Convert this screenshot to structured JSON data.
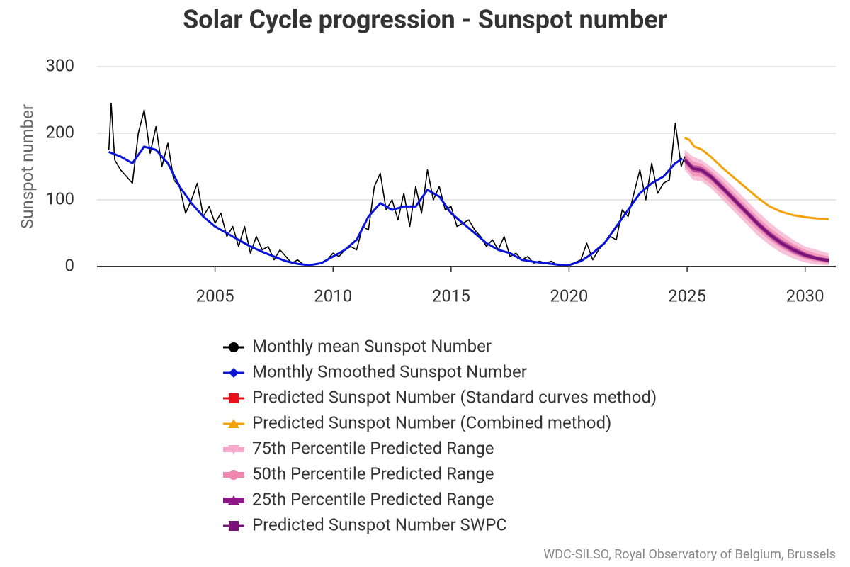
{
  "chart_data": {
    "type": "line",
    "title": "Solar Cycle progression - Sunspot number",
    "ylabel": "Sunspot number",
    "source": "WDC-SILSO, Royal Observatory of Belgium, Brussels",
    "xlim": [
      2000,
      2031.3
    ],
    "ylim": [
      0,
      300
    ],
    "xticks": [
      2005,
      2010,
      2015,
      2020,
      2025,
      2030
    ],
    "yticks": [
      0,
      100,
      200,
      300
    ],
    "grid": true,
    "series": [
      {
        "name": "Monthly mean Sunspot Number",
        "color": "#000000",
        "marker": "circle",
        "kind": "line",
        "x": [
          2000.5,
          2000.6,
          2000.75,
          2001.0,
          2001.25,
          2001.5,
          2001.75,
          2002.0,
          2002.25,
          2002.5,
          2002.75,
          2003.0,
          2003.25,
          2003.5,
          2003.75,
          2004.0,
          2004.25,
          2004.5,
          2004.75,
          2005.0,
          2005.25,
          2005.5,
          2005.75,
          2006.0,
          2006.25,
          2006.5,
          2006.75,
          2007.0,
          2007.25,
          2007.5,
          2007.75,
          2008.0,
          2008.25,
          2008.5,
          2008.75,
          2009.0,
          2009.25,
          2009.5,
          2009.75,
          2010.0,
          2010.25,
          2010.5,
          2010.75,
          2011.0,
          2011.25,
          2011.5,
          2011.75,
          2012.0,
          2012.25,
          2012.5,
          2012.75,
          2013.0,
          2013.25,
          2013.5,
          2013.75,
          2014.0,
          2014.25,
          2014.5,
          2014.75,
          2015.0,
          2015.25,
          2015.5,
          2015.75,
          2016.0,
          2016.25,
          2016.5,
          2016.75,
          2017.0,
          2017.25,
          2017.5,
          2017.75,
          2018.0,
          2018.25,
          2018.5,
          2018.75,
          2019.0,
          2019.25,
          2019.5,
          2019.75,
          2020.0,
          2020.25,
          2020.5,
          2020.75,
          2021.0,
          2021.25,
          2021.5,
          2021.75,
          2022.0,
          2022.25,
          2022.5,
          2022.75,
          2023.0,
          2023.25,
          2023.5,
          2023.75,
          2024.0,
          2024.25,
          2024.5,
          2024.75,
          2024.9
        ],
        "values": [
          175,
          245,
          160,
          145,
          135,
          125,
          200,
          235,
          170,
          210,
          150,
          185,
          130,
          120,
          80,
          100,
          125,
          75,
          90,
          65,
          80,
          45,
          60,
          30,
          60,
          20,
          45,
          25,
          30,
          10,
          25,
          15,
          5,
          10,
          3,
          2,
          3,
          5,
          10,
          20,
          15,
          25,
          30,
          25,
          60,
          55,
          120,
          140,
          85,
          100,
          70,
          110,
          60,
          120,
          80,
          145,
          100,
          120,
          85,
          90,
          60,
          65,
          70,
          55,
          45,
          30,
          40,
          25,
          45,
          15,
          20,
          10,
          15,
          5,
          8,
          5,
          8,
          2,
          1,
          3,
          6,
          10,
          35,
          10,
          25,
          35,
          45,
          40,
          85,
          75,
          110,
          145,
          100,
          155,
          110,
          125,
          130,
          215,
          150,
          165
        ]
      },
      {
        "name": "Monthly Smoothed Sunspot Number",
        "color": "#0a14d8",
        "marker": "diamond",
        "kind": "line",
        "x": [
          2000.5,
          2001,
          2001.5,
          2002,
          2002.5,
          2003,
          2003.5,
          2004,
          2004.5,
          2005,
          2005.5,
          2006,
          2006.5,
          2007,
          2007.5,
          2008,
          2008.5,
          2009,
          2009.5,
          2010,
          2010.5,
          2011,
          2011.5,
          2012,
          2012.5,
          2013,
          2013.5,
          2014,
          2014.5,
          2015,
          2015.5,
          2016,
          2016.5,
          2017,
          2017.5,
          2018,
          2018.5,
          2019,
          2019.5,
          2020,
          2020.5,
          2021,
          2021.5,
          2022,
          2022.5,
          2023,
          2023.5,
          2024,
          2024.5,
          2024.8
        ],
        "values": [
          172,
          165,
          155,
          180,
          175,
          155,
          120,
          95,
          75,
          60,
          50,
          40,
          30,
          22,
          15,
          8,
          4,
          2,
          5,
          15,
          25,
          40,
          75,
          95,
          85,
          90,
          90,
          115,
          105,
          80,
          65,
          50,
          35,
          25,
          20,
          10,
          7,
          5,
          3,
          2,
          8,
          20,
          35,
          60,
          85,
          110,
          125,
          135,
          155,
          162
        ]
      },
      {
        "name": "Predicted Sunspot Number (Standard curves method)",
        "color": "#e8101a",
        "marker": "square",
        "kind": "line",
        "x": [
          2024.9,
          2025.25,
          2025.6,
          2026,
          2026.5,
          2027,
          2027.5,
          2028,
          2028.5,
          2029,
          2029.5,
          2030,
          2030.5,
          2031
        ],
        "values": [
          160,
          147,
          145,
          135,
          118,
          100,
          82,
          64,
          48,
          35,
          25,
          17,
          12,
          9
        ]
      },
      {
        "name": "Predicted Sunspot Number (Combined method)",
        "color": "#f5a20a",
        "marker": "triangle",
        "kind": "line",
        "x": [
          2024.9,
          2025.1,
          2025.3,
          2025.6,
          2026,
          2026.5,
          2027,
          2027.5,
          2028,
          2028.5,
          2029,
          2029.5,
          2030,
          2030.5,
          2031
        ],
        "values": [
          193,
          190,
          180,
          176,
          165,
          148,
          133,
          118,
          103,
          90,
          82,
          77,
          74,
          72,
          71
        ]
      },
      {
        "name": "75th Percentile Predicted Range",
        "color": "#f5aacb",
        "marker": "triangle-down",
        "kind": "band",
        "x": [
          2024.9,
          2025.25,
          2025.6,
          2026,
          2026.5,
          2027,
          2027.5,
          2028,
          2028.5,
          2029,
          2029.5,
          2030,
          2030.5,
          2031
        ],
        "upper": [
          175,
          165,
          160,
          150,
          135,
          118,
          100,
          82,
          66,
          52,
          40,
          30,
          25,
          20
        ],
        "lower": [
          145,
          130,
          128,
          118,
          100,
          82,
          64,
          46,
          32,
          20,
          12,
          6,
          3,
          2
        ]
      },
      {
        "name": "50th Percentile Predicted Range",
        "color": "#ee86ae",
        "marker": "circle",
        "kind": "band",
        "x": [
          2024.9,
          2025.25,
          2025.6,
          2026,
          2026.5,
          2027,
          2027.5,
          2028,
          2028.5,
          2029,
          2029.5,
          2030,
          2030.5,
          2031
        ],
        "upper": [
          170,
          158,
          154,
          144,
          128,
          110,
          92,
          74,
          58,
          45,
          34,
          25,
          19,
          15
        ],
        "lower": [
          150,
          136,
          134,
          124,
          107,
          89,
          71,
          54,
          39,
          27,
          18,
          11,
          7,
          4
        ]
      },
      {
        "name": "25th Percentile Predicted Range",
        "color": "#8e1788",
        "marker": "triangle",
        "kind": "band",
        "x": [
          2024.9,
          2025.25,
          2025.6,
          2026,
          2026.5,
          2027,
          2027.5,
          2028,
          2028.5,
          2029,
          2029.5,
          2030,
          2030.5,
          2031
        ],
        "upper": [
          165,
          152,
          150,
          140,
          123,
          105,
          87,
          69,
          53,
          40,
          30,
          21,
          15,
          12
        ],
        "lower": [
          155,
          142,
          140,
          130,
          113,
          95,
          77,
          59,
          43,
          30,
          20,
          13,
          9,
          6
        ]
      },
      {
        "name": "Predicted Sunspot Number SWPC",
        "color": "#7a1478",
        "marker": "square",
        "kind": "line",
        "x": [
          2024.9,
          2025.25,
          2025.6,
          2026,
          2026.5,
          2027,
          2027.5,
          2028,
          2028.5,
          2029,
          2029.5,
          2030,
          2030.5,
          2031
        ],
        "values": [
          160,
          147,
          145,
          135,
          118,
          100,
          82,
          64,
          48,
          35,
          25,
          17,
          12,
          9
        ]
      }
    ]
  }
}
